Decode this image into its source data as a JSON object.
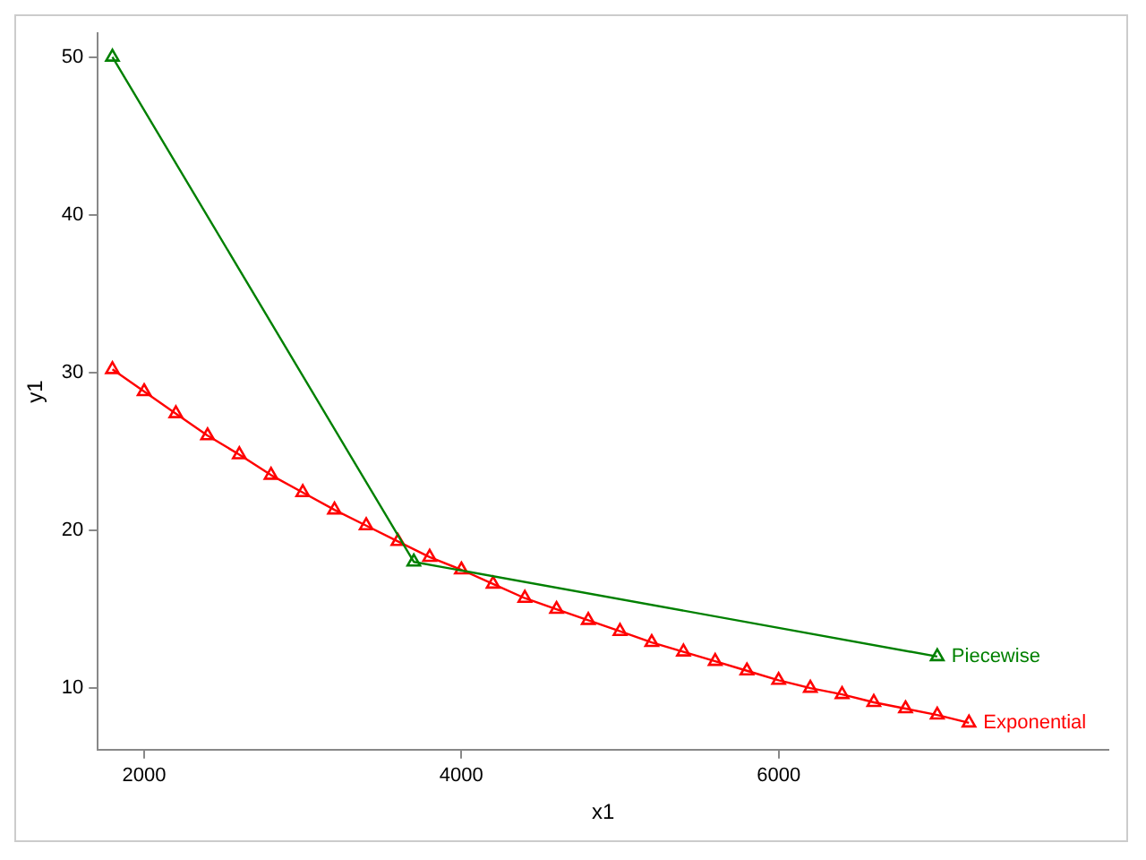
{
  "chart_data": {
    "type": "line",
    "xlabel": "x1",
    "ylabel": "y1",
    "xlim": [
      1708,
      8079
    ],
    "ylim": [
      6.1,
      51.5
    ],
    "xticks": [
      2000,
      4000,
      6000
    ],
    "yticks": [
      10,
      20,
      30,
      40,
      50
    ],
    "grid": false,
    "legend": false,
    "marker": "triangle",
    "line_style": "solid",
    "series": [
      {
        "name": "Piecewise",
        "color": "#008000",
        "x": [
          1800,
          3700,
          7000
        ],
        "values": [
          50,
          18,
          12
        ]
      },
      {
        "name": "Exponential",
        "color": "#ff0000",
        "x": [
          1800,
          2000,
          2200,
          2400,
          2600,
          2800,
          3000,
          3200,
          3400,
          3600,
          3800,
          4000,
          4200,
          4400,
          4600,
          4800,
          5000,
          5200,
          5400,
          5600,
          5800,
          6000,
          6200,
          6400,
          6600,
          6800,
          7000,
          7200
        ],
        "values": [
          30.2,
          28.8,
          27.4,
          26.0,
          24.8,
          23.5,
          22.4,
          21.3,
          20.3,
          19.3,
          18.3,
          17.5,
          16.6,
          15.7,
          15.0,
          14.3,
          13.6,
          12.9,
          12.3,
          11.7,
          11.1,
          10.5,
          10.0,
          9.6,
          9.1,
          8.7,
          8.3,
          7.8
        ]
      }
    ]
  }
}
